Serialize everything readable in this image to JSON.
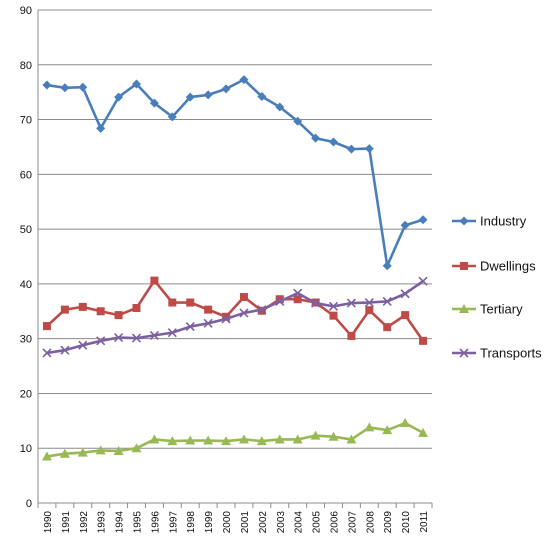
{
  "chart_data": {
    "type": "line",
    "title": "",
    "xlabel": "",
    "ylabel": "",
    "ylim": [
      0,
      90
    ],
    "yticks": [
      "0",
      "10",
      "20",
      "30",
      "40",
      "50",
      "60",
      "70",
      "80",
      "90"
    ],
    "grid": "horizontal",
    "legend_position": "right",
    "x": [
      "1990",
      "1991",
      "1992",
      "1993",
      "1994",
      "1995",
      "1996",
      "1997",
      "1998",
      "1999",
      "2000",
      "2001",
      "2002",
      "2003",
      "2004",
      "2005",
      "2006",
      "2007",
      "2008",
      "2009",
      "2010",
      "2011"
    ],
    "series": [
      {
        "name": "Industry",
        "color": "#4a7ebb",
        "marker": "diamond",
        "values": [
          76.3,
          75.8,
          75.9,
          68.4,
          74.1,
          76.5,
          73.0,
          70.5,
          74.1,
          74.5,
          75.6,
          77.3,
          74.2,
          72.3,
          69.7,
          66.6,
          65.9,
          64.6,
          64.7,
          43.3,
          50.7,
          51.7
        ]
      },
      {
        "name": "Dwellings",
        "color": "#be4b48",
        "marker": "square",
        "values": [
          32.3,
          35.3,
          35.8,
          35.0,
          34.3,
          35.6,
          40.6,
          36.6,
          36.6,
          35.3,
          34.0,
          37.6,
          35.1,
          37.2,
          37.2,
          36.6,
          34.2,
          30.5,
          35.2,
          32.1,
          34.3,
          29.6
        ]
      },
      {
        "name": "Tertiary",
        "color": "#98b954",
        "marker": "triangle",
        "values": [
          8.5,
          9.0,
          9.2,
          9.6,
          9.5,
          10.0,
          11.6,
          11.3,
          11.4,
          11.4,
          11.3,
          11.6,
          11.3,
          11.6,
          11.6,
          12.3,
          12.1,
          11.6,
          13.8,
          13.3,
          14.6,
          12.8
        ]
      },
      {
        "name": "Transports",
        "color": "#7d60a0",
        "marker": "x",
        "values": [
          27.4,
          27.9,
          28.8,
          29.6,
          30.2,
          30.1,
          30.6,
          31.1,
          32.2,
          32.8,
          33.6,
          34.7,
          35.3,
          36.8,
          38.3,
          36.5,
          35.9,
          36.5,
          36.6,
          36.8,
          38.2,
          40.5
        ]
      }
    ]
  }
}
